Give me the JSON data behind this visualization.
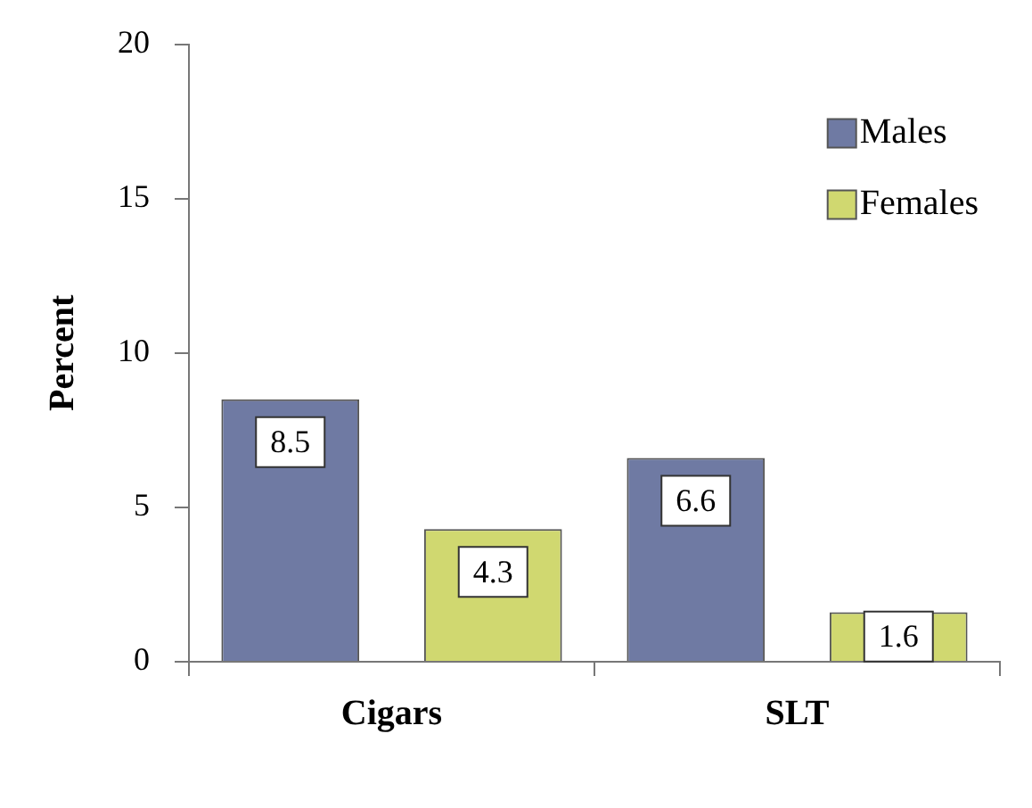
{
  "chart_data": {
    "type": "bar",
    "ylabel": "Percent",
    "categories": [
      "Cigars",
      "SLT"
    ],
    "series": [
      {
        "name": "Males",
        "color": "#6f7aa3",
        "values": [
          8.5,
          6.6
        ]
      },
      {
        "name": "Females",
        "color": "#d0d870",
        "values": [
          4.3,
          1.6
        ]
      }
    ],
    "ylim": [
      0,
      20
    ],
    "yticks": [
      0,
      5,
      10,
      15,
      20
    ],
    "grid": false,
    "legend": "top right",
    "data_labels": true
  }
}
